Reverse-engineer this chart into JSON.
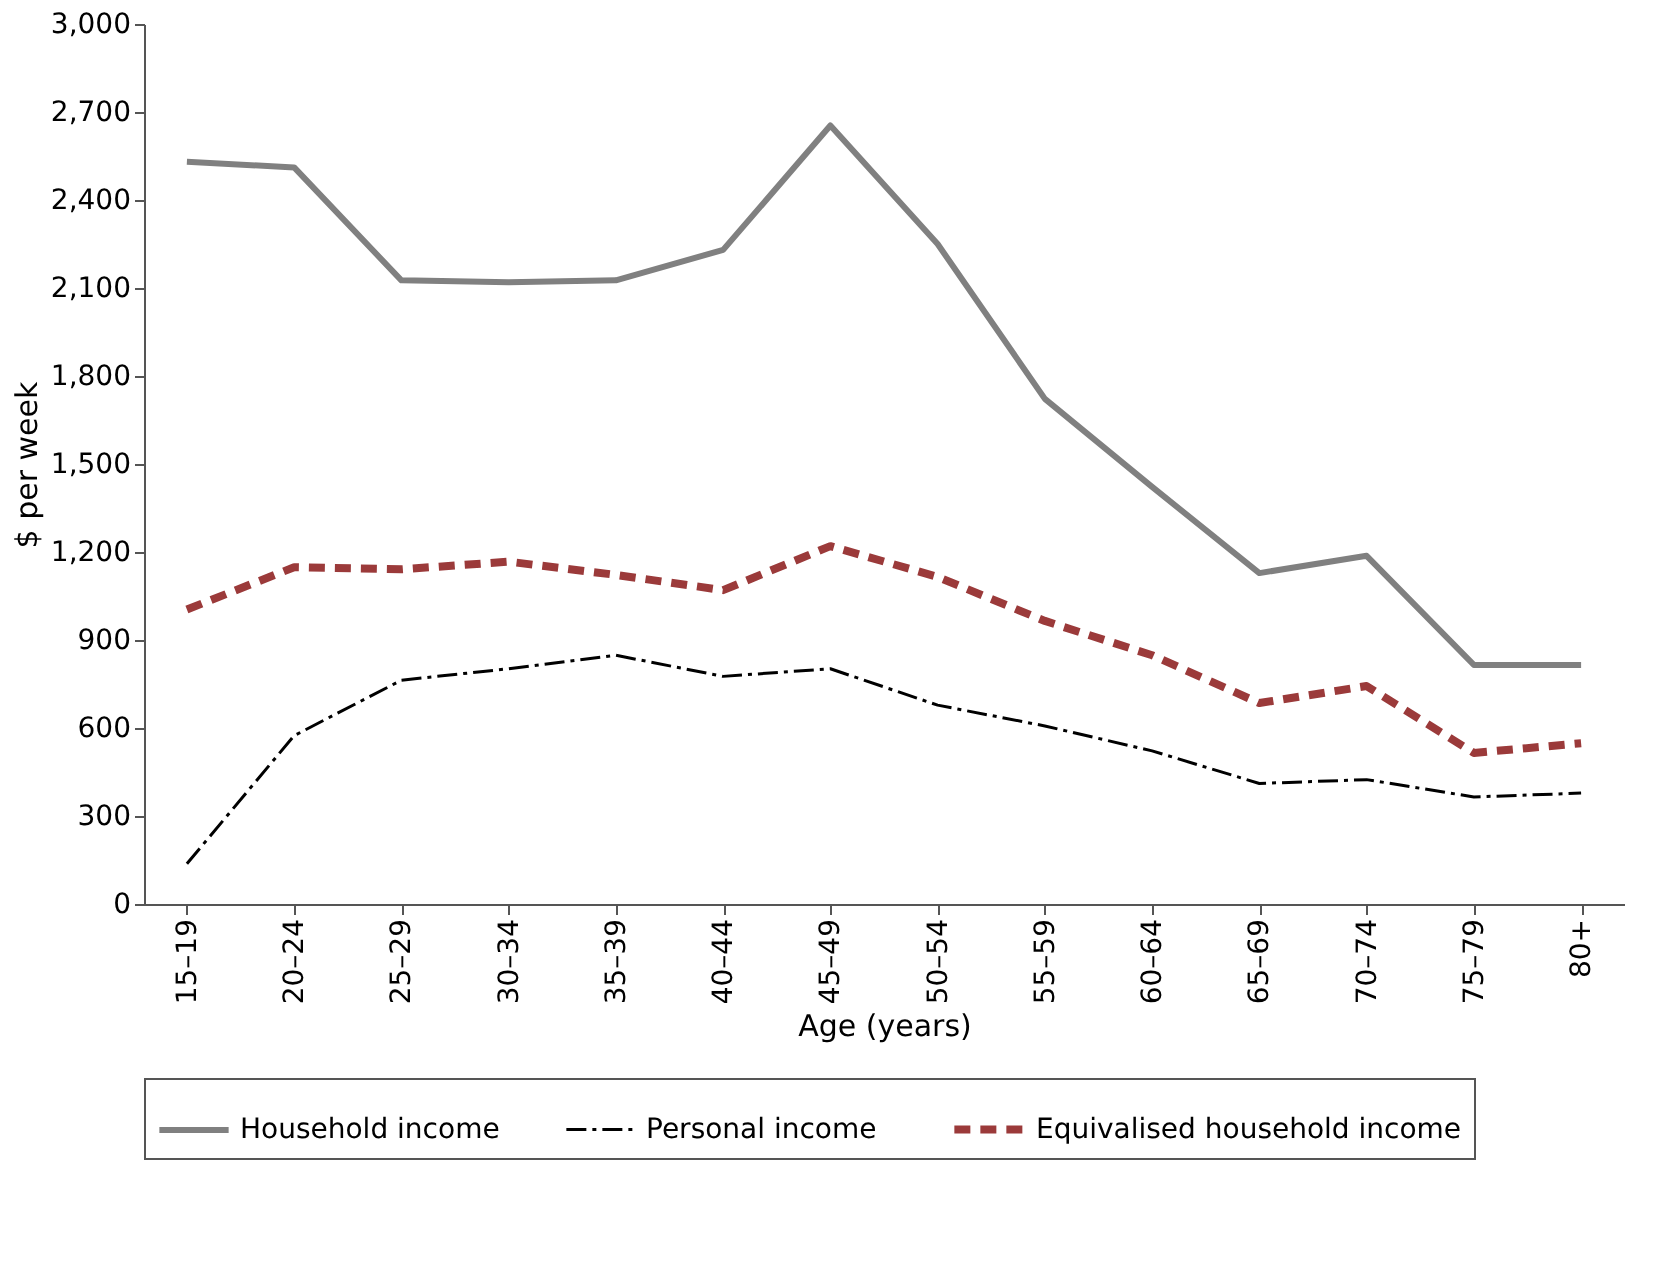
{
  "chart_data": {
    "type": "line",
    "xlabel": "Age (years)",
    "ylabel": "$ per week",
    "categories": [
      "15–19",
      "20–24",
      "25–29",
      "30–34",
      "35–39",
      "40–44",
      "45–49",
      "50–54",
      "55–59",
      "60–64",
      "65–69",
      "70–74",
      "75–79",
      "80+"
    ],
    "series": [
      {
        "name": "Household income",
        "color": "#808080",
        "line_style": "solid",
        "values": [
          2530,
          2511,
          2126,
          2120,
          2126,
          2230,
          2654,
          2250,
          1722,
          1422,
          1128,
          1187,
          815,
          815
        ]
      },
      {
        "name": "Personal income",
        "color": "#000000",
        "line_style": "dashed",
        "values": [
          137,
          574,
          763,
          802,
          848,
          776,
          802,
          678,
          607,
          522,
          411,
          424,
          365,
          378
        ]
      },
      {
        "name": "Equivalised household income",
        "color": "#9b3a3a",
        "line_style": "dashed",
        "values": [
          1004,
          1148,
          1141,
          1167,
          1122,
          1070,
          1220,
          1115,
          965,
          848,
          685,
          743,
          515,
          548
        ]
      }
    ],
    "ylim": [
      0,
      3000
    ],
    "yticks": [
      0,
      300,
      600,
      900,
      {
        "value": 1200,
        "label": "1,200"
      },
      {
        "value": 1500,
        "label": "1,500"
      },
      {
        "value": 1800,
        "label": "1,800"
      },
      {
        "value": 2100,
        "label": "2,100"
      },
      {
        "value": 2400,
        "label": "2,400"
      },
      {
        "value": 2700,
        "label": "2,700"
      },
      {
        "value": 3000,
        "label": "3,000"
      }
    ],
    "grid": false,
    "legend": "bottom",
    "marker": "none"
  }
}
